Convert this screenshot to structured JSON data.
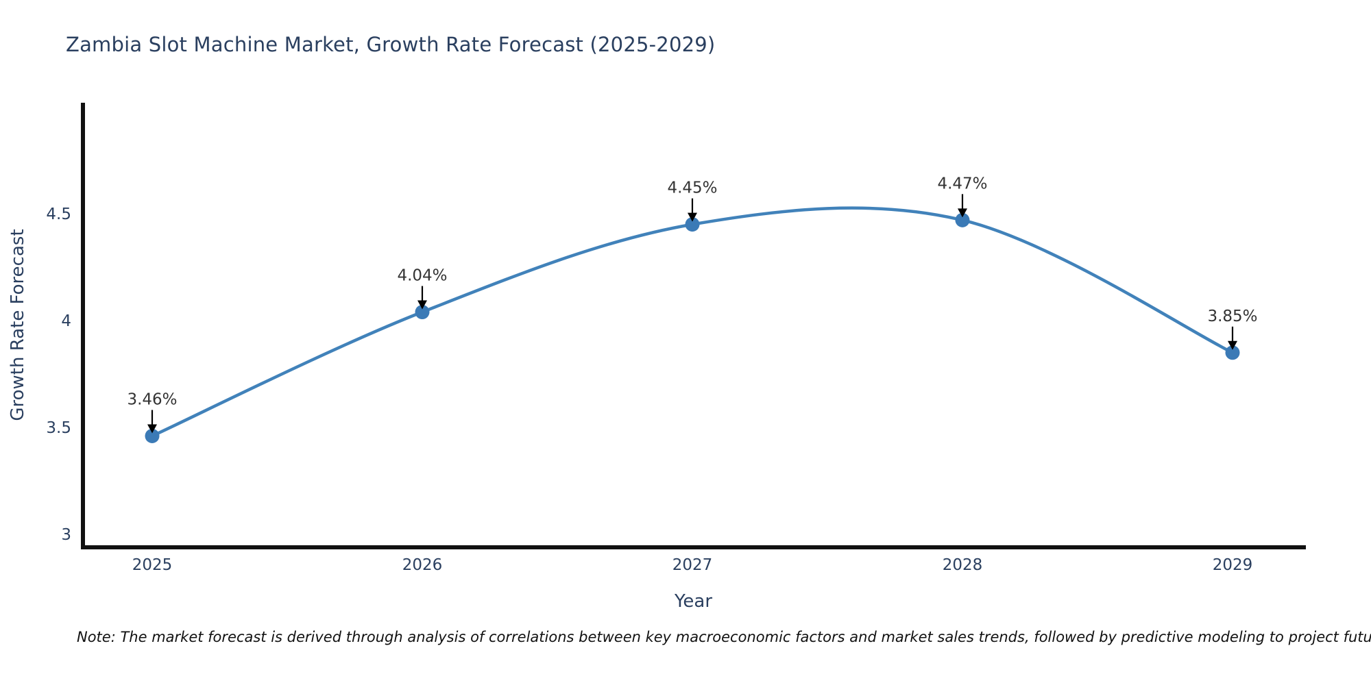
{
  "chart_data": {
    "type": "line",
    "line_shape": "spline",
    "title": "Zambia Slot Machine Market, Growth Rate Forecast (2025-2029)",
    "xlabel": "Year",
    "ylabel": "Growth Rate Forecast",
    "categories": [
      "2025",
      "2026",
      "2027",
      "2028",
      "2029"
    ],
    "values": [
      3.46,
      4.04,
      4.45,
      4.47,
      3.85
    ],
    "point_labels": [
      "3.46%",
      "4.04%",
      "4.45%",
      "4.47%",
      "3.85%"
    ],
    "yticks": [
      3,
      3.5,
      4,
      4.5
    ],
    "ytick_labels": [
      "3",
      "3.5",
      "4",
      "4.5"
    ],
    "ylim": [
      2.93,
      5.02
    ],
    "grid": false,
    "legend": "none",
    "colors": {
      "line": "#4182ba",
      "marker": "#3b7ab6",
      "axis": "#111111",
      "text": "#2a3f5f",
      "annotation_text": "#333333",
      "arrow": "#000000"
    }
  },
  "note": {
    "text": "Note: The market forecast is derived through analysis of correlations between key macroeconomic factors and market sales trends, followed by predictive modeling to project future sales"
  }
}
